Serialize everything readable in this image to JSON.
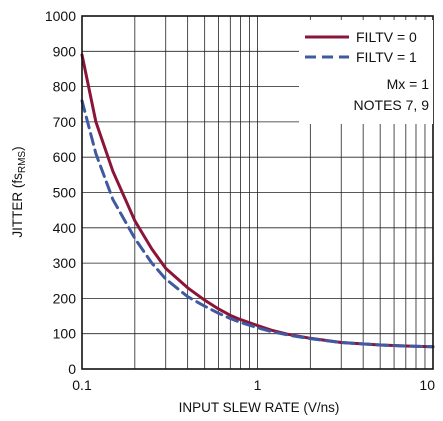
{
  "chart_data": {
    "type": "line",
    "xscale": "log",
    "xlim": [
      0.1,
      10
    ],
    "ylim": [
      0,
      1000
    ],
    "xlabel": "INPUT SLEW RATE (V/ns)",
    "ylabel": "JITTER (fs",
    "ylabel_sub": "RMS",
    "ylabel_close": ")",
    "x_ticks": [
      0.1,
      1,
      10
    ],
    "x_tick_labels": [
      "0.1",
      "1",
      "10"
    ],
    "y_ticks": [
      0,
      100,
      200,
      300,
      400,
      500,
      600,
      700,
      800,
      900,
      1000
    ],
    "y_tick_labels": [
      "0",
      "100",
      "200",
      "300",
      "400",
      "500",
      "600",
      "700",
      "800",
      "900",
      "1000"
    ],
    "grid": true,
    "legend_position": "top-right",
    "annotation_lines": [
      "Mx = 1",
      "NOTES 7, 9"
    ],
    "series": [
      {
        "name": "FILTV = 0",
        "color": "#8b1538",
        "style": "solid",
        "x": [
          0.1,
          0.12,
          0.15,
          0.2,
          0.25,
          0.3,
          0.4,
          0.5,
          0.6,
          0.7,
          0.8,
          1,
          1.2,
          1.5,
          2,
          3,
          5,
          7,
          10
        ],
        "y": [
          890,
          700,
          560,
          420,
          340,
          285,
          230,
          195,
          170,
          152,
          140,
          123,
          110,
          98,
          87,
          75,
          68,
          65,
          63
        ]
      },
      {
        "name": "FILTV = 1",
        "color": "#3f5aa0",
        "style": "dashed",
        "x": [
          0.1,
          0.12,
          0.15,
          0.2,
          0.25,
          0.3,
          0.4,
          0.5,
          0.6,
          0.7,
          0.8,
          1,
          1.2,
          1.5,
          2,
          3,
          5,
          7,
          10
        ],
        "y": [
          760,
          610,
          480,
          370,
          300,
          255,
          205,
          178,
          158,
          143,
          132,
          117,
          106,
          96,
          86,
          75,
          68,
          65,
          63
        ]
      }
    ]
  }
}
